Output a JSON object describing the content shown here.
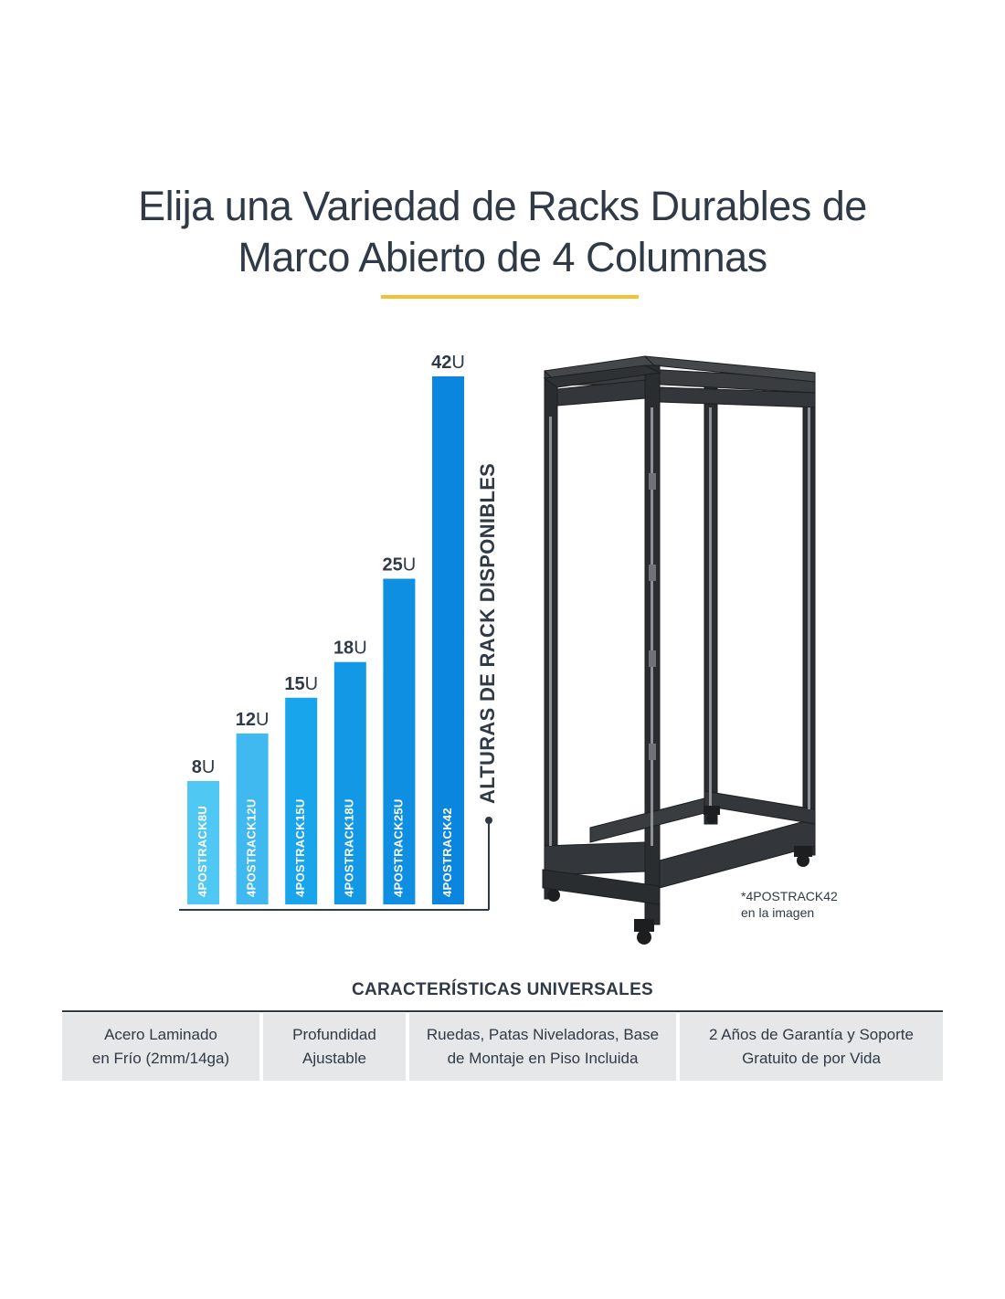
{
  "title": {
    "line1": "Elija una Variedad de Racks Durables de",
    "line2": "Marco Abierto de 4 Columnas"
  },
  "colors": {
    "title_rule": "#f1c232",
    "text": "#2f3a46",
    "bar_gradient": [
      "#4fc8f3",
      "#3fb9f0",
      "#19a5ec",
      "#1398e6",
      "#0e8fe2",
      "#0a86df"
    ],
    "rack_frame": "#2a2d30",
    "feature_bg": "#e6e7e8"
  },
  "chart_data": {
    "type": "bar",
    "categories": [
      "4POSTRACK8U",
      "4POSTRACK12U",
      "4POSTRACK15U",
      "4POSTRACK18U",
      "4POSTRACK25U",
      "4POSTRACK42"
    ],
    "values": [
      8,
      12,
      15,
      18,
      25,
      42
    ],
    "value_labels": [
      "8",
      "12",
      "15",
      "18",
      "25",
      "42"
    ],
    "unit": "U",
    "ylabel": "ALTURAS DE RACK DISPONIBLES",
    "xlabel": "",
    "legend": "none",
    "grid": false
  },
  "rack_note": {
    "line1": "*4POSTRACK42",
    "line2": "en la imagen"
  },
  "rack_icon": "open-frame-4-post-rack-icon",
  "features": {
    "heading": "CARACTERÍSTICAS UNIVERSALES",
    "items": [
      {
        "line1": "Acero Laminado",
        "line2": "en Frío (2mm/14ga)"
      },
      {
        "line1": "Profundidad",
        "line2": "Ajustable"
      },
      {
        "line1": "Ruedas, Patas Niveladoras, Base",
        "line2": "de Montaje en Piso Incluida"
      },
      {
        "line1": "2 Años de Garantía y Soporte",
        "line2": "Gratuito de por Vida"
      }
    ]
  }
}
